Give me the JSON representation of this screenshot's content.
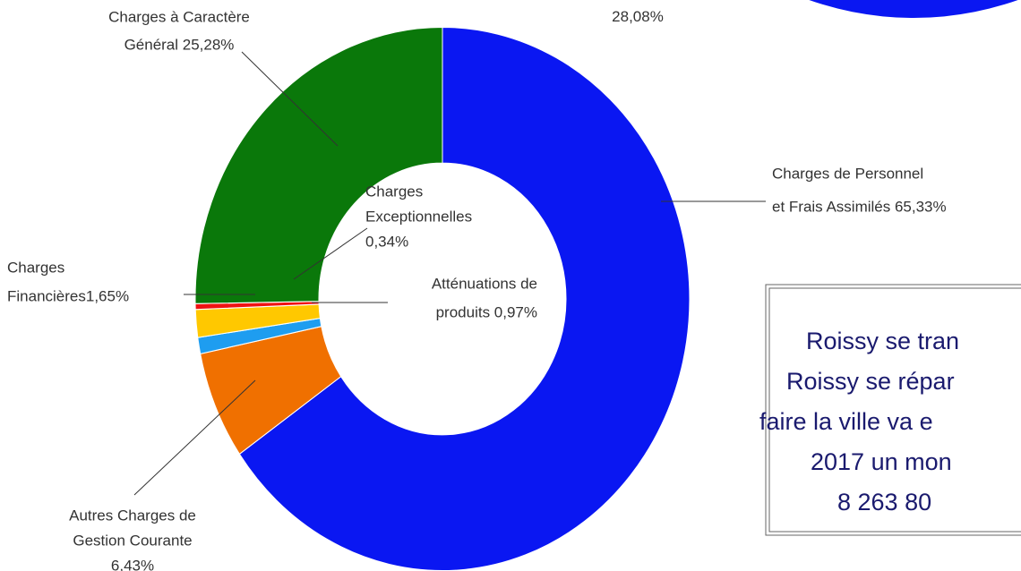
{
  "chart_data": {
    "type": "donut",
    "categories": [
      [
        "Charges de Personnel",
        "et Frais Assimilés 65,33%"
      ],
      [
        "Autres Charges de",
        "Gestion Courante",
        "6,43%"
      ],
      [
        "Atténuations de",
        "produits 0,97%"
      ],
      [
        "Charges",
        "Financières1,65%"
      ],
      [
        "Charges",
        "Exceptionnelles",
        "0,34%"
      ],
      [
        "Charges à Caractère",
        "Général 25,28%"
      ]
    ],
    "values": [
      65.33,
      6.43,
      0.97,
      1.65,
      0.34,
      25.28
    ],
    "colors": [
      "#0a17f2",
      "#f07000",
      "#1e9df0",
      "#ffc800",
      "#f01212",
      "#0a780a"
    ]
  },
  "other_chart_label": "28,08%",
  "text_box": {
    "lines": [
      "Roissy se tran",
      "Roissy se répar",
      "faire la ville va e",
      "2017 un mon",
      "8 263 80"
    ]
  }
}
